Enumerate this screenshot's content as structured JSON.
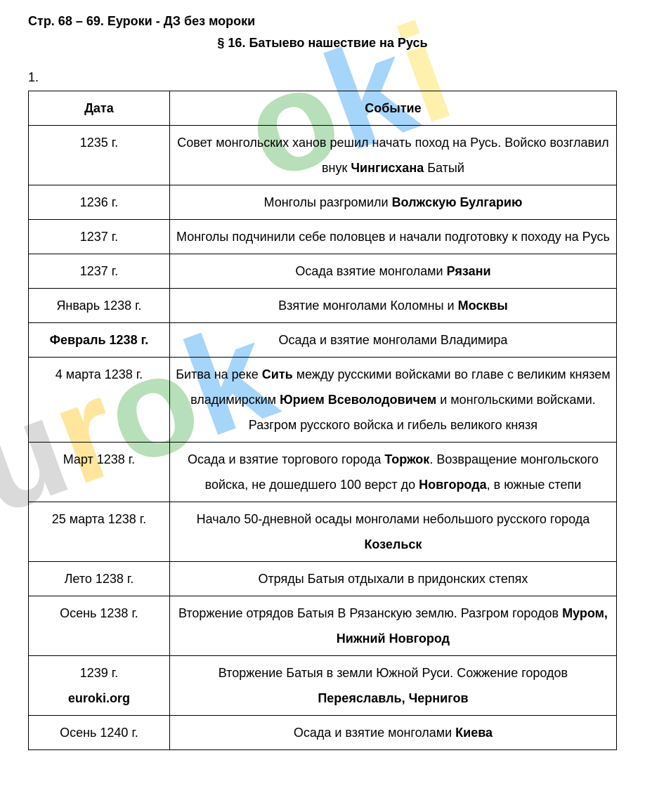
{
  "pageHeader": "Стр. 68 – 69. Еуроки - ДЗ без мороки",
  "sectionTitle": "§ 16. Батыево нашествие на Русь",
  "taskNumber": "1.",
  "siteNote": "euroki.org",
  "table": {
    "columns": [
      "Дата",
      "Событие"
    ],
    "rows": [
      {
        "date": "1235 г.",
        "date_bold": false,
        "event_html": "Совет монгольских ханов решил начать поход на Русь. Войско возглавил внук <b>Чингисхана</b> Батый"
      },
      {
        "date": "1236 г.",
        "date_bold": false,
        "event_html": "Монголы разгромили <b>Волжскую Булгарию</b>"
      },
      {
        "date": "1237 г.",
        "date_bold": false,
        "event_html": "Монголы подчинили себе половцев и начали подготовку к походу на Русь"
      },
      {
        "date": "1237 г.",
        "date_bold": false,
        "event_html": "Осада взятие монголами <b>Рязани</b>"
      },
      {
        "date": "Январь 1238 г.",
        "date_bold": false,
        "event_html": "Взятие монголами Коломны и <b>Москвы</b>"
      },
      {
        "date": "Февраль 1238 г.",
        "date_bold": true,
        "event_html": "Осада и взятие монголами Владимира"
      },
      {
        "date": "4 марта 1238 г.",
        "date_bold": false,
        "event_html": "Битва на реке <b>Сить</b> между русскими войсками во главе с великим князем владимирским <b>Юрием Всеволодовичем</b> и монгольскими войсками. Разгром русского войска и гибель великого князя"
      },
      {
        "date": "Март 1238 г.",
        "date_bold": false,
        "event_html": "Осада и взятие торгового города <b>Торжок</b>. Возвращение монгольского войска, не дошедшего 100 верст до <b>Новгорода</b>, в южные степи"
      },
      {
        "date": "25 марта 1238 г.",
        "date_bold": false,
        "event_html": "Начало 50-дневной осады монголами небольшого русского города <b>Козельск</b>"
      },
      {
        "date": "Лето 1238 г.",
        "date_bold": false,
        "event_html": "Отряды Батыя отдыхали в придонских степях"
      },
      {
        "date": "Осень 1238 г.",
        "date_bold": false,
        "event_html": "Вторжение отрядов Батыя В Рязанскую землю. Разгром городов <b>Муром, Нижний Новгород</b>"
      },
      {
        "date": "1239 г.",
        "date_bold": false,
        "date_has_note": true,
        "event_html": "Вторжение Батыя в земли Южной Руси. Сожжение городов <b>Переяславль, Чернигов</b>"
      },
      {
        "date": "Осень 1240 г.",
        "date_bold": false,
        "event_html": "Осада и взятие монголами <b>Киева</b>"
      }
    ]
  },
  "styling": {
    "font_family": "Arial, sans-serif",
    "base_fontsize": 18,
    "line_height": 2.0,
    "border_color": "#000000",
    "background_color": "#ffffff",
    "date_col_width_pct": 24,
    "watermark": {
      "text": "euroki",
      "fontsize": 200,
      "rotation_deg": -20,
      "colors": {
        "e": "rgba(233,30,99,0.4)",
        "u": "rgba(150,150,150,0.35)",
        "r": "rgba(255,193,7,0.4)",
        "o": "rgba(76,175,80,0.4)",
        "k": "rgba(33,150,243,0.4)",
        "i": "rgba(250,220,50,0.4)"
      }
    }
  }
}
